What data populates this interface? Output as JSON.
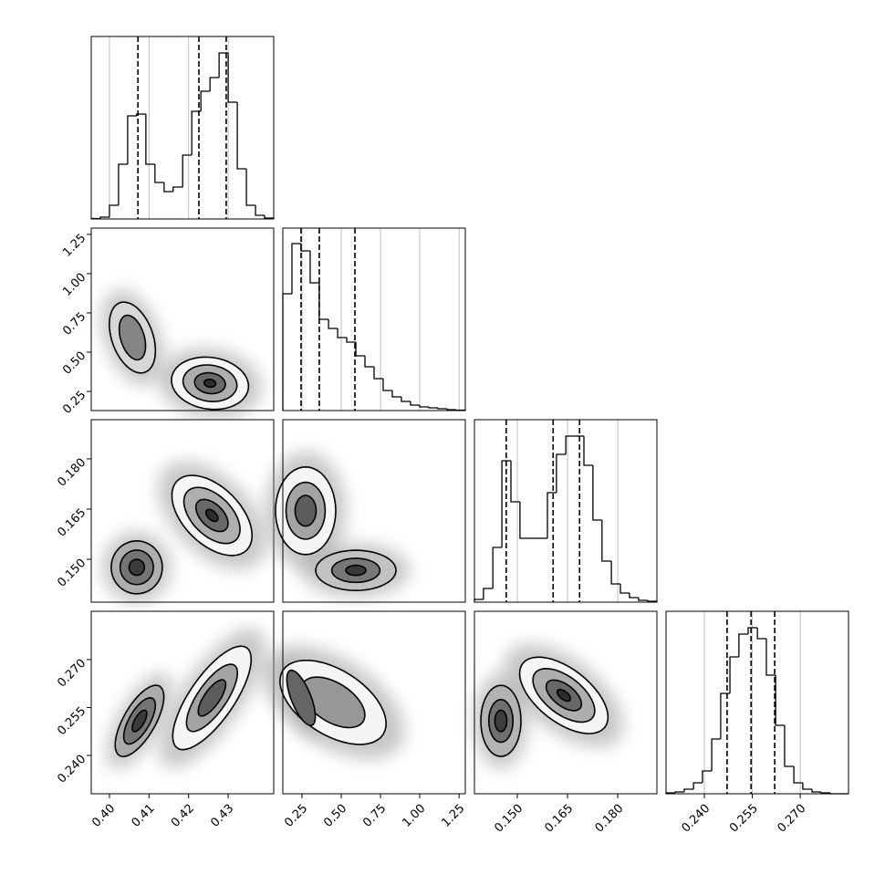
{
  "chart_data": {
    "type": "corner",
    "params": [
      {
        "xlim": [
          0.3954,
          0.4415
        ],
        "ylim": [
          0,
          200
        ],
        "xticks": [
          {
            "value": 0.4,
            "label": "0.40"
          },
          0.41,
          0.42,
          0.43
        ],
        "bins": [
          0.3954,
          0.3977,
          0.4,
          0.4023,
          0.4046,
          0.4069,
          0.4092,
          0.4115,
          0.4138,
          0.4161,
          0.4185,
          0.4208,
          0.4231,
          0.4254,
          0.4277,
          0.43,
          0.4323,
          0.4346,
          0.4369,
          0.4392,
          0.4415
        ],
        "counts": [
          0.5,
          2,
          15,
          60,
          113,
          115,
          60,
          40,
          30,
          35,
          70,
          118,
          140,
          155,
          182,
          128,
          55,
          15,
          4,
          1
        ],
        "quantiles": [
          0.4072,
          0.4226,
          0.4295
        ]
      },
      {
        "xlim": [
          0.128,
          1.29
        ],
        "ylim": [
          0,
          200
        ],
        "xticks": [
          0.25,
          {
            "value": 0.5,
            "label": "0.50"
          },
          0.75,
          {
            "value": 1.0,
            "label": "1.00"
          },
          1.25
        ],
        "bins": [
          0.128,
          0.186,
          0.244,
          0.302,
          0.36,
          0.419,
          0.477,
          0.535,
          0.593,
          0.651,
          0.709,
          0.767,
          0.825,
          0.883,
          0.941,
          0.999,
          1.058,
          1.116,
          1.174,
          1.232,
          1.29
        ],
        "counts": [
          128,
          183,
          175,
          140,
          100,
          90,
          80,
          75,
          60,
          48,
          35,
          22,
          15,
          10,
          6,
          4,
          3,
          2,
          1,
          0.5
        ],
        "quantiles": [
          0.244,
          0.36,
          0.587
        ]
      },
      {
        "xlim": [
          0.1372,
          0.1917
        ],
        "ylim": [
          0,
          200
        ],
        "xticks": [
          {
            "value": 0.15,
            "label": "0.150"
          },
          0.165,
          {
            "value": 0.18,
            "label": "0.180"
          }
        ],
        "bins": [
          0.1372,
          0.1399,
          0.1427,
          0.1454,
          0.1481,
          0.1508,
          0.1536,
          0.1563,
          0.159,
          0.1617,
          0.1645,
          0.1672,
          0.1699,
          0.1726,
          0.1753,
          0.1781,
          0.1808,
          0.1835,
          0.1862,
          0.189,
          0.1917
        ],
        "counts": [
          3,
          15,
          60,
          155,
          110,
          70,
          70,
          70,
          120,
          162,
          182,
          182,
          150,
          90,
          45,
          20,
          10,
          5,
          2,
          1
        ],
        "quantiles": [
          0.1467,
          0.1607,
          0.1686
        ]
      },
      {
        "xlim": [
          0.228,
          0.2851
        ],
        "ylim": [
          0,
          200
        ],
        "xticks": [
          {
            "value": 0.24,
            "label": "0.240"
          },
          0.255,
          {
            "value": 0.27,
            "label": "0.270"
          }
        ],
        "bins": [
          0.228,
          0.2309,
          0.2337,
          0.2366,
          0.2394,
          0.2423,
          0.2451,
          0.248,
          0.2508,
          0.2537,
          0.2566,
          0.2594,
          0.2623,
          0.2651,
          0.268,
          0.2708,
          0.2737,
          0.2765,
          0.2794,
          0.2822,
          0.2851
        ],
        "counts": [
          1,
          2,
          5,
          12,
          25,
          60,
          110,
          150,
          175,
          182,
          170,
          130,
          75,
          30,
          12,
          5,
          2,
          1,
          0,
          0
        ],
        "quantiles": [
          0.2471,
          0.2546,
          0.262
        ]
      }
    ],
    "pairs": [
      {
        "x": 0,
        "y": 1,
        "blobs": [
          {
            "center": [
              0.4058,
              0.593
            ],
            "levels": [
              [
                0.00323,
                -0.221,
                0.00485,
                0.0465
              ],
              [
                0.00185,
                -0.139,
                0.00277,
                0.029
              ]
            ]
          },
          {
            "center": [
              0.4254,
              0.302
            ],
            "levels": [
              [
                0.00969,
                -0.0349,
                -0.00092,
                -0.163
              ],
              [
                0.00678,
                -0.0244,
                -0.00065,
                -0.114
              ],
              [
                0.00388,
                -0.014,
                -0.00037,
                -0.065
              ],
              [
                0.00145,
                -0.0052,
                -0.00014,
                -0.0245
              ]
            ]
          }
        ]
      },
      {
        "x": 0,
        "y": 2,
        "blobs": [
          {
            "center": [
              0.4069,
              0.1476
            ],
            "levels": [
              [
                0.00646,
                0,
                0,
                -0.0079
              ],
              [
                0.0042,
                0,
                0,
                -0.00514
              ],
              [
                0.00194,
                0,
                0,
                -0.00237
              ]
            ]
          },
          {
            "center": [
              0.4259,
              0.1631
            ],
            "levels": [
              [
                0.00877,
                -0.01036,
                -0.00508,
                -0.006
              ],
              [
                0.00614,
                -0.00725,
                -0.00356,
                -0.0042
              ],
              [
                0.00351,
                -0.00414,
                -0.00203,
                -0.0024
              ],
              [
                0.00132,
                -0.00155,
                -0.00076,
                -0.0009
              ]
            ]
          }
        ]
      },
      {
        "x": 0,
        "y": 3,
        "blobs": [
          {
            "center": [
              0.4076,
              0.2508
            ],
            "levels": [
              [
                0.00508,
                0.01085,
                0.00346,
                -0.00257
              ],
              [
                0.0033,
                0.00705,
                0.00225,
                -0.00167
              ],
              [
                0.00152,
                0.00326,
                0.00104,
                -0.00077
              ]
            ]
          },
          {
            "center": [
              0.4259,
              0.258
            ],
            "levels": [
              [
                0.00877,
                0.0157,
                0.00462,
                -0.004
              ],
              [
                0.0057,
                0.0102,
                0.003,
                -0.0026
              ],
              [
                0.00307,
                0.0055,
                0.00162,
                -0.0014
              ]
            ]
          }
        ]
      },
      {
        "x": 1,
        "y": 2,
        "blobs": [
          {
            "center": [
              0.273,
              0.1645
            ],
            "levels": [
              [
                0,
                -0.01308,
                0.1917,
                0
              ],
              [
                0,
                -0.0085,
                0.1246,
                0
              ],
              [
                0,
                -0.00458,
                0.0671,
                0
              ]
            ]
          },
          {
            "center": [
              0.593,
              0.1467
            ],
            "levels": [
              [
                0.2556,
                0,
                0,
                -0.006
              ],
              [
                0.1534,
                0,
                0,
                -0.0036
              ],
              [
                0.0639,
                0,
                0,
                -0.0015
              ]
            ]
          }
        ]
      },
      {
        "x": 1,
        "y": 3,
        "blobs": [
          {
            "center": [
              0.4476,
              0.2566
            ],
            "levels": [
              [
                0.3196,
                -0.01,
                -0.1104,
                -0.00857
              ],
              [
                0.1918,
                -0.006,
                -0.0662,
                -0.00514
              ]
            ]
          },
          {
            "center": [
              0.2442,
              0.258
            ],
            "levels": [
              [
                0.0697,
                -0.00857,
                0.0581,
                0.00114
              ]
            ]
          }
        ]
      },
      {
        "x": 2,
        "y": 3,
        "blobs": [
          {
            "center": [
              0.1451,
              0.2508
            ],
            "levels": [
              [
                0,
                -0.01113,
                0.006,
                0
              ],
              [
                0,
                -0.00668,
                0.0036,
                0
              ],
              [
                0,
                -0.00334,
                0.0018,
                0
              ]
            ]
          },
          {
            "center": [
              0.1639,
              0.2588
            ],
            "levels": [
              [
                0.01226,
                -0.01,
                -0.0049,
                -0.00657
              ],
              [
                0.00858,
                -0.007,
                -0.00343,
                -0.0046
              ],
              [
                0.0049,
                -0.004,
                -0.00196,
                -0.00263
              ],
              [
                0.00184,
                -0.0015,
                -0.00074,
                -0.00099
              ]
            ]
          }
        ]
      }
    ]
  }
}
